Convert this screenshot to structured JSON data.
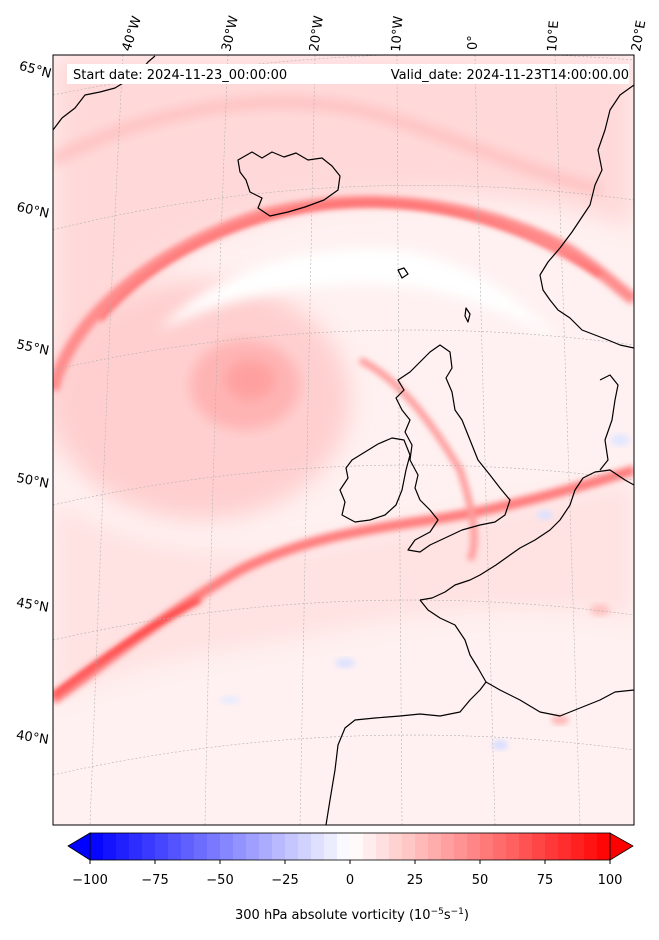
{
  "header": {
    "start_date": "Start date: 2024-11-23_00:00:00",
    "valid_date": "Valid_date: 2024-11-23T14:00:00.00"
  },
  "lon_labels": [
    "40°W",
    "30°W",
    "20°W",
    "10°W",
    "0°",
    "10°E",
    "20°E"
  ],
  "lat_labels": [
    "65°N",
    "60°N",
    "55°N",
    "50°N",
    "45°N",
    "40°N"
  ],
  "colorbar": {
    "ticks": [
      "−100",
      "−75",
      "−50",
      "−25",
      "0",
      "25",
      "50",
      "75",
      "100"
    ],
    "label_main": "300 hPa absolute vorticity (10",
    "label_exp1": "−5",
    "label_mid": "s",
    "label_exp2": "−1",
    "label_end": ")",
    "vmin": -100,
    "vmax": 100,
    "levels": 41,
    "extend": "both"
  },
  "colors": {
    "negative": "#0000ff",
    "zero": "#ffffff",
    "positive": "#ff0000",
    "coastline": "#000000",
    "gridline": "#b0b0b0"
  }
}
